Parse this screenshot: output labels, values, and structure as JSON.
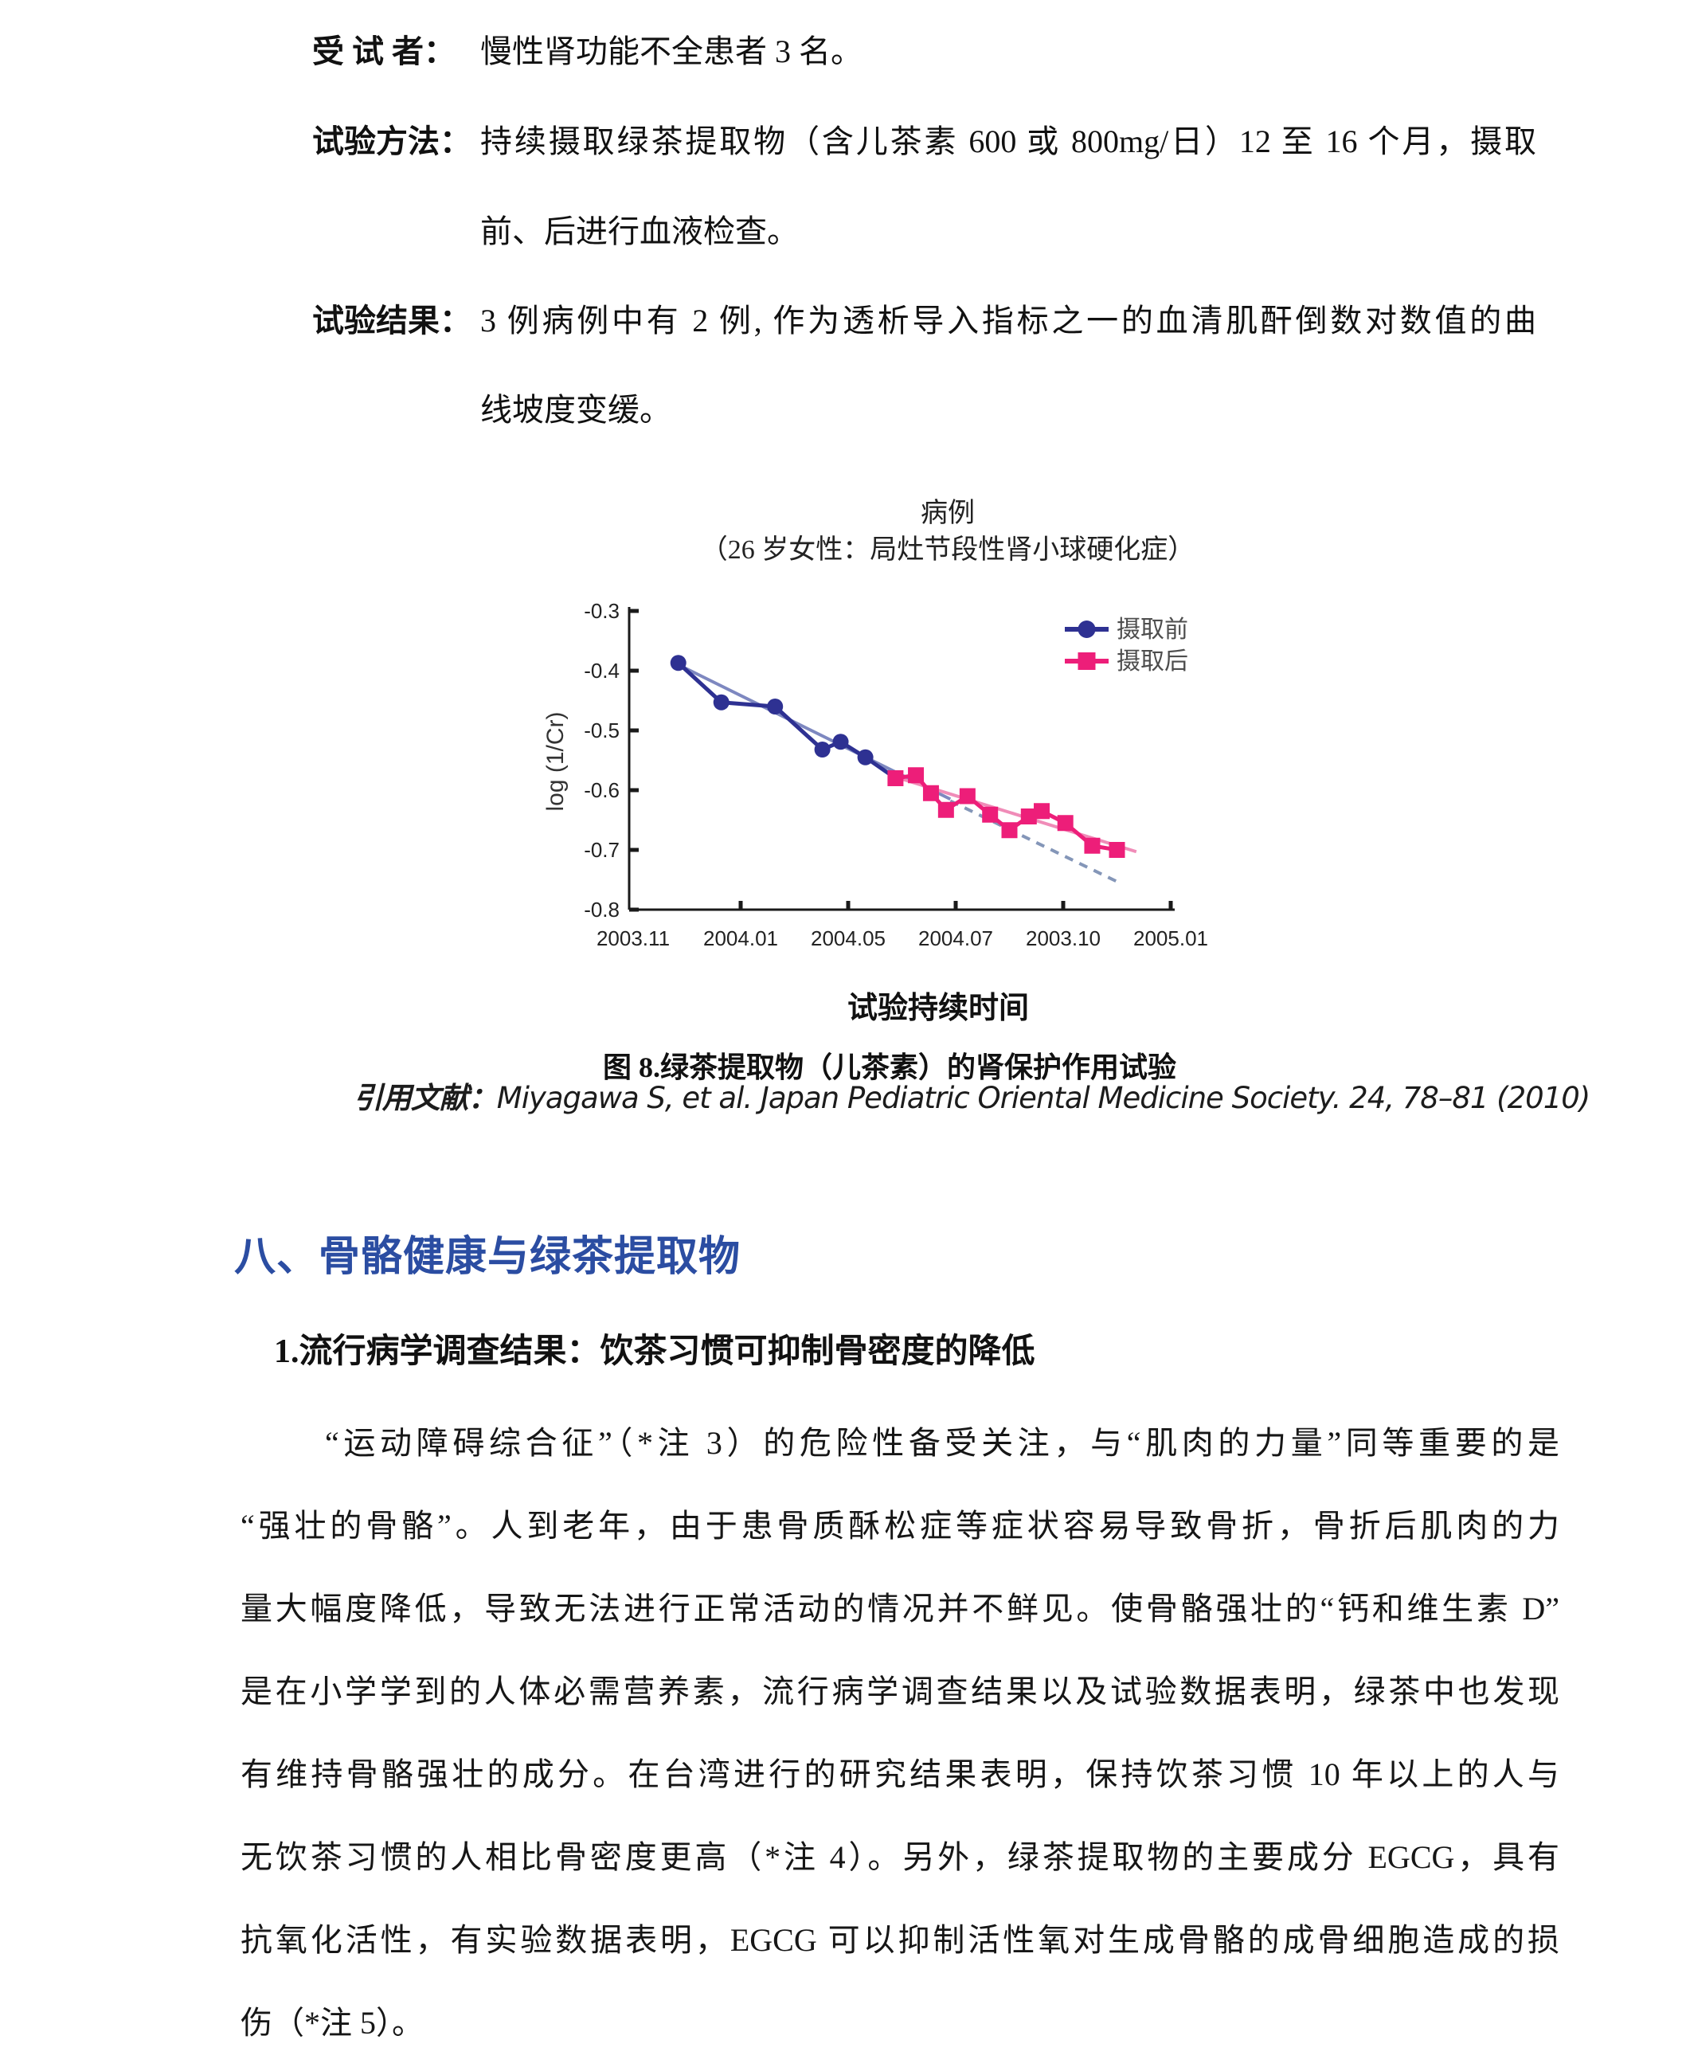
{
  "header_block": {
    "rows": [
      {
        "label": "受 试 者：",
        "lines": [
          {
            "text": "慢性肾功能不全患者 3 名。",
            "justify": false
          }
        ]
      },
      {
        "label": "试验方法：",
        "lines": [
          {
            "text": "持续摄取绿茶提取物（含儿茶素 600 或 800mg/日）12 至 16 个月，摄取",
            "justify": true
          },
          {
            "text": "前、后进行血液检查。",
            "justify": false
          }
        ]
      },
      {
        "label": "试验结果：",
        "lines": [
          {
            "text": "3 例病例中有 2 例, 作为透析导入指标之一的血清肌酐倒数对数值的曲",
            "justify": true
          },
          {
            "text": "线坡度变缓。",
            "justify": false
          }
        ]
      }
    ]
  },
  "figure": {
    "caption": "图 8.绿茶提取物（儿茶素）的肾保护作用试验",
    "citation_label": "引用文献：",
    "citation_text": "Miyagawa S, et al. Japan Pediatric Oriental Medicine Society. 24, 78–81 (2010)"
  },
  "chart_data": {
    "type": "line",
    "title": "病例",
    "subtitle": "（26 岁女性：局灶节段性肾小球硬化症）",
    "xlabel": "试验持续时间",
    "ylabel": "log (1/Cr)",
    "ylim": [
      -0.8,
      -0.3
    ],
    "yticks": [
      -0.3,
      -0.4,
      -0.5,
      -0.6,
      -0.7,
      -0.8
    ],
    "xtick_labels": [
      "2003.11",
      "2004.01",
      "2004.05",
      "2004.07",
      "2003.10",
      "2005.01"
    ],
    "grid": false,
    "legend_position": "top-right",
    "axis_color": "#1a1a1a",
    "legend_text_color": "#4d4d4d",
    "series": [
      {
        "name": "摄取前",
        "color": "#2e3192",
        "marker": "circle",
        "points": [
          [
            0.42,
            -0.387
          ],
          [
            0.82,
            -0.453
          ],
          [
            1.32,
            -0.46
          ],
          [
            1.76,
            -0.532
          ],
          [
            1.93,
            -0.519
          ],
          [
            2.16,
            -0.545
          ]
        ],
        "extend_to": [
          2.44,
          -0.58
        ]
      },
      {
        "name": "摄取后",
        "color": "#ed1e79",
        "marker": "square",
        "points": [
          [
            2.44,
            -0.58
          ],
          [
            2.63,
            -0.575
          ],
          [
            2.77,
            -0.605
          ],
          [
            2.91,
            -0.633
          ],
          [
            3.11,
            -0.61
          ],
          [
            3.32,
            -0.641
          ],
          [
            3.5,
            -0.667
          ],
          [
            3.68,
            -0.644
          ],
          [
            3.8,
            -0.635
          ],
          [
            4.02,
            -0.655
          ],
          [
            4.27,
            -0.693
          ],
          [
            4.5,
            -0.7
          ]
        ]
      }
    ],
    "trend_lines": [
      {
        "name": "摄取前拟合线",
        "color": "#7e88c0",
        "dash": false,
        "from": [
          0.42,
          -0.39
        ],
        "to": [
          2.95,
          -0.615
        ]
      },
      {
        "name": "摄取前延长虚线",
        "color": "#8496b8",
        "dash": true,
        "from": [
          2.95,
          -0.618
        ],
        "to": [
          4.5,
          -0.753
        ]
      },
      {
        "name": "摄取后拟合线",
        "color": "#f08cb8",
        "dash": false,
        "from": [
          2.44,
          -0.578
        ],
        "to": [
          4.68,
          -0.703
        ]
      }
    ]
  },
  "section": {
    "heading": "八、骨骼健康与绿茶提取物",
    "heading_color": "#2b4da2",
    "subheading": "1.流行病学调查结果：饮茶习惯可抑制骨密度的降低",
    "paragraph_lines": [
      "“运动障碍综合征”（*注 3）的危险性备受关注，与“肌肉的力量”同等重要的是",
      "“强壮的骨骼”。人到老年，由于患骨质酥松症等症状容易导致骨折，骨折后肌肉的力",
      "量大幅度降低，导致无法进行正常活动的情况并不鲜见。使骨骼强壮的“钙和维生素 D”",
      "是在小学学到的人体必需营养素，流行病学调查结果以及试验数据表明，绿茶中也发现",
      "有维持骨骼强壮的成分。在台湾进行的研究结果表明，保持饮茶习惯 10 年以上的人与",
      "无饮茶习惯的人相比骨密度更高（*注 4）。另外，绿茶提取物的主要成分 EGCG，具有",
      "抗氧化活性，有实验数据表明，EGCG 可以抑制活性氧对生成骨骼的成骨细胞造成的损",
      "伤（*注 5）。"
    ]
  }
}
